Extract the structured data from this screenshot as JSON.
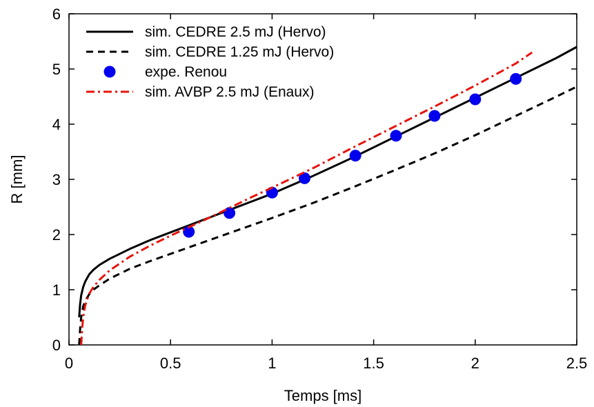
{
  "chart_data": {
    "type": "line",
    "xlabel": "Temps [ms]",
    "ylabel": "R [mm]",
    "xlim": [
      0,
      2.5
    ],
    "ylim": [
      0,
      6
    ],
    "xticks": [
      "0",
      "0.5",
      "1",
      "1.5",
      "2",
      "2.5"
    ],
    "yticks": [
      "0",
      "1",
      "2",
      "3",
      "4",
      "5",
      "6"
    ],
    "grid": false,
    "legend_position": "top-left",
    "series": [
      {
        "name": "sim. CEDRE 2.5 mJ (Hervo)",
        "kind": "line",
        "style": "solid",
        "color": "#000000",
        "x": [
          0.05,
          0.055,
          0.06,
          0.07,
          0.08,
          0.1,
          0.12,
          0.15,
          0.2,
          0.3,
          0.4,
          0.5,
          0.6,
          0.7,
          0.8,
          0.9,
          1.0,
          1.2,
          1.4,
          1.6,
          1.8,
          2.0,
          2.2,
          2.4,
          2.5
        ],
        "y": [
          0.5,
          0.75,
          0.9,
          1.05,
          1.15,
          1.28,
          1.36,
          1.45,
          1.56,
          1.74,
          1.9,
          2.04,
          2.18,
          2.32,
          2.46,
          2.6,
          2.74,
          3.06,
          3.4,
          3.76,
          4.12,
          4.48,
          4.84,
          5.2,
          5.4
        ]
      },
      {
        "name": "sim. CEDRE 1.25 mJ (Hervo)",
        "kind": "line",
        "style": "dashed",
        "color": "#000000",
        "x": [
          0.05,
          0.055,
          0.06,
          0.07,
          0.08,
          0.1,
          0.12,
          0.15,
          0.2,
          0.3,
          0.4,
          0.5,
          0.6,
          0.7,
          0.8,
          0.9,
          1.0,
          1.2,
          1.4,
          1.6,
          1.8,
          2.0,
          2.2,
          2.4,
          2.5
        ],
        "y": [
          0.0,
          0.3,
          0.5,
          0.7,
          0.8,
          0.92,
          1.0,
          1.08,
          1.2,
          1.38,
          1.52,
          1.65,
          1.78,
          1.91,
          2.04,
          2.17,
          2.3,
          2.57,
          2.86,
          3.16,
          3.47,
          3.8,
          4.15,
          4.5,
          4.68
        ]
      },
      {
        "name": "expe. Renou",
        "kind": "points",
        "color": "#0000ee",
        "x": [
          0.59,
          0.79,
          1.0,
          1.16,
          1.41,
          1.61,
          1.8,
          2.0,
          2.2
        ],
        "y": [
          2.05,
          2.39,
          2.76,
          3.02,
          3.43,
          3.79,
          4.15,
          4.45,
          4.82
        ]
      },
      {
        "name": "sim. AVBP 2.5 mJ (Enaux)",
        "kind": "line",
        "style": "dashdot",
        "color": "#e8140c",
        "x": [
          0.06,
          0.065,
          0.07,
          0.08,
          0.1,
          0.12,
          0.15,
          0.2,
          0.3,
          0.4,
          0.5,
          0.6,
          0.7,
          0.8,
          0.9,
          1.0,
          1.2,
          1.4,
          1.6,
          1.8,
          2.0,
          2.2,
          2.28
        ],
        "y": [
          0.0,
          0.3,
          0.5,
          0.72,
          0.93,
          1.05,
          1.18,
          1.35,
          1.6,
          1.8,
          1.98,
          2.15,
          2.32,
          2.5,
          2.68,
          2.85,
          3.2,
          3.58,
          3.95,
          4.32,
          4.7,
          5.1,
          5.3
        ]
      }
    ]
  }
}
